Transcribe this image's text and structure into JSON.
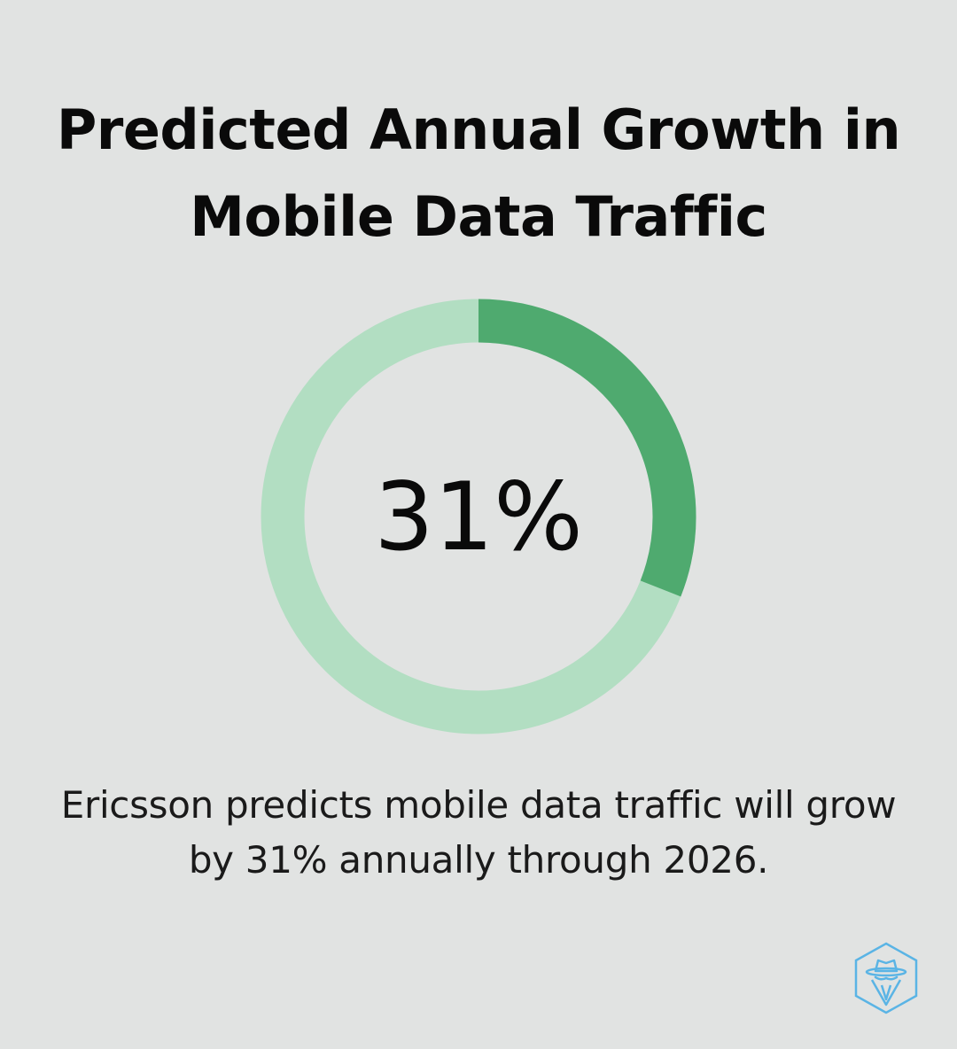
{
  "title": {
    "line1": "Predicted Annual Growth in",
    "line2": "Mobile Data Traffic"
  },
  "chart_data": {
    "type": "pie",
    "variant": "donut",
    "values": [
      31,
      69
    ],
    "center_label": "31%",
    "colors": {
      "value": "#4faa6f",
      "remainder": "#b2dec2"
    }
  },
  "caption": {
    "line1": "Ericsson predicts mobile data traffic will grow",
    "line2": "by 31% annually through 2026."
  },
  "logo": {
    "icon": "spy-hat-hexagon-icon",
    "color": "#5ab4e5"
  }
}
